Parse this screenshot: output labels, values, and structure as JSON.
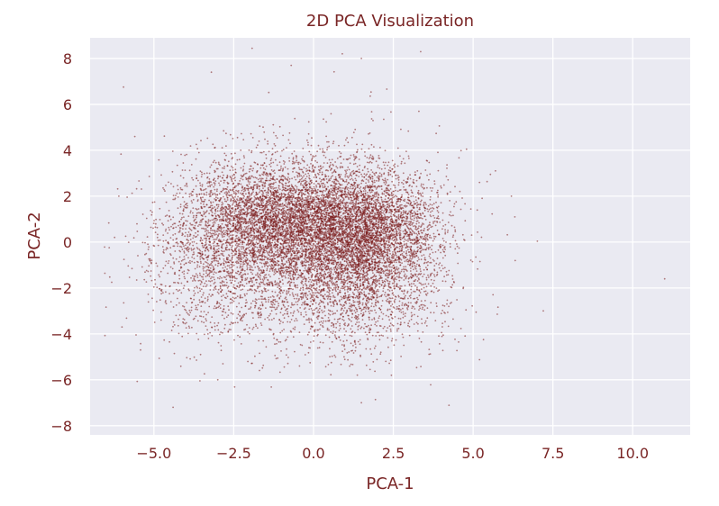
{
  "chart_data": {
    "type": "scatter",
    "title": "2D PCA Visualization",
    "xlabel": "PCA-1",
    "ylabel": "PCA-2",
    "xlim": [
      -7.0,
      11.8
    ],
    "ylim": [
      -8.4,
      8.9
    ],
    "xticks": [
      -5.0,
      -2.5,
      0.0,
      2.5,
      5.0,
      7.5,
      10.0
    ],
    "xtick_labels": [
      "−5.0",
      "−2.5",
      "0.0",
      "2.5",
      "5.0",
      "7.5",
      "10.0"
    ],
    "yticks": [
      -8,
      -6,
      -4,
      -2,
      0,
      2,
      4,
      6,
      8
    ],
    "ytick_labels": [
      "−8",
      "−6",
      "−4",
      "−2",
      "0",
      "2",
      "4",
      "6",
      "8"
    ],
    "grid": true,
    "legend": "none",
    "point_count_estimate": 12000,
    "notable_points": [
      {
        "x": 11.0,
        "y": -1.6
      },
      {
        "x": 7.2,
        "y": -3.0
      },
      {
        "x": 6.2,
        "y": 2.0
      },
      {
        "x": 5.7,
        "y": 3.1
      },
      {
        "x": 5.2,
        "y": 2.6
      },
      {
        "x": 0.9,
        "y": 8.2
      },
      {
        "x": 1.5,
        "y": 8.0
      },
      {
        "x": -0.7,
        "y": 7.7
      },
      {
        "x": -3.2,
        "y": 7.4
      },
      {
        "x": -5.6,
        "y": 4.6
      },
      {
        "x": -6.1,
        "y": 2.0
      },
      {
        "x": -6.0,
        "y": -3.7
      },
      {
        "x": -4.4,
        "y": -7.2
      },
      {
        "x": -3.0,
        "y": -6.0
      },
      {
        "x": 1.5,
        "y": -7.0
      },
      {
        "x": 3.3,
        "y": 5.7
      }
    ],
    "clusters": [
      {
        "cx": 1.8,
        "cy": 0.3,
        "sx": 1.1,
        "sy": 1.4,
        "weight": 0.3
      },
      {
        "cx": 0.0,
        "cy": 0.7,
        "sx": 1.4,
        "sy": 1.4,
        "weight": 0.27
      },
      {
        "cx": -1.8,
        "cy": 0.9,
        "sx": 1.3,
        "sy": 1.3,
        "weight": 0.22
      },
      {
        "cx": -2.8,
        "cy": -1.6,
        "sx": 1.4,
        "sy": 1.6,
        "weight": 0.08
      },
      {
        "cx": 1.2,
        "cy": -2.4,
        "sx": 1.4,
        "sy": 1.3,
        "weight": 0.09
      },
      {
        "cx": 0.0,
        "cy": 0.3,
        "sx": 2.6,
        "sy": 2.6,
        "weight": 0.04
      }
    ],
    "colors": {
      "points": "#7a1a1a",
      "plot_background": "#eaeaf2",
      "grid": "#ffffff",
      "text": "#7a2626"
    }
  }
}
